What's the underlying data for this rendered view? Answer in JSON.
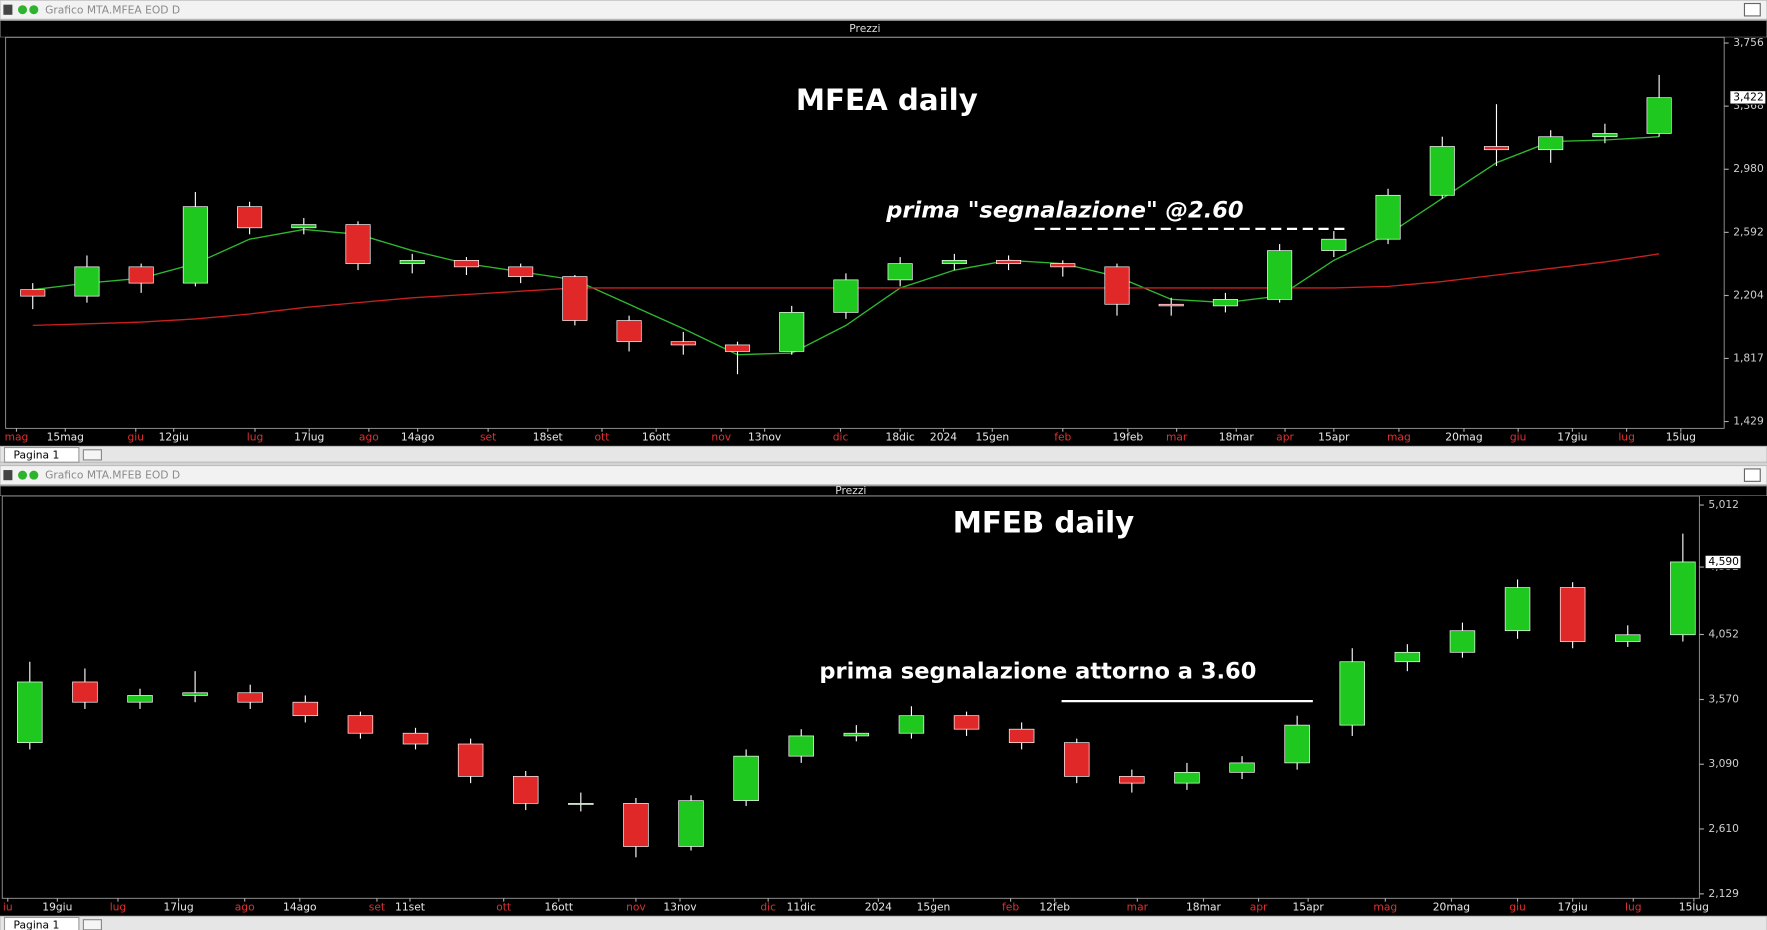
{
  "windows": [
    {
      "title": "Grafico MTA.MFEA EOD D",
      "panel": "Prezzi",
      "tab": "Pagina 1",
      "chart_data": {
        "type": "candlestick",
        "annotations": [
          "MFEA daily",
          "prima \"segnalazione\" @2.60"
        ],
        "up_color": "#1ec81e",
        "down_color": "#e02828",
        "wick_color": "#ffffff",
        "open": [
          2.24,
          2.2,
          2.38,
          2.28,
          2.75,
          2.62,
          2.64,
          2.4,
          2.42,
          2.38,
          2.32,
          2.05,
          1.92,
          1.9,
          1.86,
          2.1,
          2.3,
          2.4,
          2.42,
          2.4,
          2.38,
          2.15,
          2.14,
          2.18,
          2.48,
          2.55,
          2.82,
          3.12,
          3.1,
          3.18,
          3.2
        ],
        "high": [
          2.28,
          2.45,
          2.4,
          2.84,
          2.78,
          2.68,
          2.66,
          2.46,
          2.44,
          2.4,
          2.33,
          2.08,
          1.98,
          1.92,
          2.14,
          2.34,
          2.44,
          2.46,
          2.45,
          2.42,
          2.4,
          2.19,
          2.22,
          2.52,
          2.6,
          2.86,
          3.18,
          3.38,
          3.22,
          3.26,
          3.56
        ],
        "low": [
          2.12,
          2.16,
          2.22,
          2.26,
          2.58,
          2.58,
          2.36,
          2.34,
          2.33,
          2.28,
          2.02,
          1.86,
          1.84,
          1.72,
          1.84,
          2.06,
          2.26,
          2.36,
          2.36,
          2.32,
          2.08,
          2.08,
          2.1,
          2.16,
          2.44,
          2.52,
          2.8,
          3.0,
          3.02,
          3.14,
          3.18
        ],
        "close": [
          2.2,
          2.38,
          2.28,
          2.75,
          2.62,
          2.64,
          2.4,
          2.42,
          2.38,
          2.32,
          2.05,
          1.92,
          1.9,
          1.86,
          2.1,
          2.3,
          2.4,
          2.42,
          2.4,
          2.38,
          2.15,
          2.14,
          2.18,
          2.48,
          2.55,
          2.82,
          3.12,
          3.1,
          3.18,
          3.2,
          3.42
        ],
        "lines": [
          {
            "color": "#2fb82f",
            "values": [
              2.24,
              2.28,
              2.31,
              2.4,
              2.55,
              2.61,
              2.58,
              2.48,
              2.4,
              2.35,
              2.3,
              2.15,
              2.0,
              1.84,
              1.85,
              2.02,
              2.25,
              2.36,
              2.42,
              2.4,
              2.32,
              2.18,
              2.16,
              2.2,
              2.42,
              2.58,
              2.8,
              3.02,
              3.15,
              3.16,
              3.18
            ]
          },
          {
            "color": "#c82020",
            "values": [
              2.02,
              2.03,
              2.04,
              2.06,
              2.09,
              2.13,
              2.16,
              2.19,
              2.21,
              2.23,
              2.25,
              2.25,
              2.25,
              2.25,
              2.25,
              2.25,
              2.25,
              2.25,
              2.25,
              2.25,
              2.25,
              2.25,
              2.25,
              2.25,
              2.25,
              2.26,
              2.29,
              2.33,
              2.37,
              2.41,
              2.46
            ]
          }
        ],
        "last": {
          "value": 3.422,
          "label": "3,422"
        },
        "xlim": [
          0,
          31.7
        ],
        "xticks": [
          {
            "value": 0.2,
            "label": "mag"
          },
          {
            "value": 1.1,
            "label": "15mag"
          },
          {
            "value": 2.4,
            "label": "giu"
          },
          {
            "value": 3.1,
            "label": "12giu"
          },
          {
            "value": 4.6,
            "label": "lug"
          },
          {
            "value": 5.6,
            "label": "17lug"
          },
          {
            "value": 6.7,
            "label": "ago"
          },
          {
            "value": 7.6,
            "label": "14ago"
          },
          {
            "value": 8.9,
            "label": "set"
          },
          {
            "value": 10.0,
            "label": "18set"
          },
          {
            "value": 11.0,
            "label": "ott"
          },
          {
            "value": 12.0,
            "label": "16ott"
          },
          {
            "value": 13.2,
            "label": "nov"
          },
          {
            "value": 14.0,
            "label": "13nov"
          },
          {
            "value": 15.4,
            "label": "dic"
          },
          {
            "value": 16.5,
            "label": "18dic"
          },
          {
            "value": 17.3,
            "label": "2024"
          },
          {
            "value": 18.2,
            "label": "15gen"
          },
          {
            "value": 19.5,
            "label": "feb"
          },
          {
            "value": 20.7,
            "label": "19feb"
          },
          {
            "value": 21.6,
            "label": "mar"
          },
          {
            "value": 22.7,
            "label": "18mar"
          },
          {
            "value": 23.6,
            "label": "apr"
          },
          {
            "value": 24.5,
            "label": "15apr"
          },
          {
            "value": 25.7,
            "label": "mag"
          },
          {
            "value": 26.9,
            "label": "20mag"
          },
          {
            "value": 27.9,
            "label": "giu"
          },
          {
            "value": 28.9,
            "label": "17giu"
          },
          {
            "value": 29.9,
            "label": "lug"
          },
          {
            "value": 30.9,
            "label": "15lug"
          }
        ],
        "ylim": [
          1.387,
          3.791
        ],
        "yticks": [
          {
            "value": 3.756,
            "label": "3,756"
          },
          {
            "value": 3.368,
            "label": "3,368"
          },
          {
            "value": 2.98,
            "label": "2,980"
          },
          {
            "value": 2.592,
            "label": "2,592"
          },
          {
            "value": 2.204,
            "label": "2,204"
          },
          {
            "value": 1.817,
            "label": "1,817"
          },
          {
            "value": 1.429,
            "label": "1,429"
          }
        ]
      }
    },
    {
      "title": "Grafico MTA.MFEB EOD D",
      "panel": "Prezzi",
      "tab": "Pagina 1",
      "chart_data": {
        "type": "candlestick",
        "annotations": [
          "MFEB daily",
          "prima segnalazione attorno a 3.60"
        ],
        "up_color": "#1ec81e",
        "down_color": "#e02828",
        "wick_color": "#ffffff",
        "open": [
          3.25,
          3.7,
          3.55,
          3.6,
          3.62,
          3.55,
          3.45,
          3.32,
          3.24,
          3.0,
          2.8,
          2.8,
          2.48,
          2.82,
          3.15,
          3.3,
          3.32,
          3.45,
          3.35,
          3.25,
          3.0,
          2.95,
          3.03,
          3.1,
          3.38,
          3.85,
          3.92,
          4.08,
          4.4,
          4.0,
          4.05
        ],
        "high": [
          3.85,
          3.8,
          3.65,
          3.78,
          3.68,
          3.6,
          3.48,
          3.36,
          3.28,
          3.04,
          2.88,
          2.84,
          2.86,
          3.2,
          3.35,
          3.38,
          3.52,
          3.48,
          3.4,
          3.28,
          3.05,
          3.1,
          3.15,
          3.45,
          3.95,
          3.98,
          4.14,
          4.46,
          4.44,
          4.12,
          4.8
        ],
        "low": [
          3.2,
          3.5,
          3.5,
          3.55,
          3.5,
          3.4,
          3.28,
          3.2,
          2.95,
          2.75,
          2.74,
          2.4,
          2.45,
          2.78,
          3.1,
          3.26,
          3.28,
          3.3,
          3.2,
          2.95,
          2.88,
          2.9,
          2.98,
          3.05,
          3.3,
          3.78,
          3.88,
          4.02,
          3.95,
          3.96,
          4.0
        ],
        "close": [
          3.7,
          3.55,
          3.6,
          3.62,
          3.55,
          3.45,
          3.32,
          3.24,
          3.0,
          2.8,
          2.8,
          2.48,
          2.82,
          3.15,
          3.3,
          3.32,
          3.45,
          3.35,
          3.25,
          3.0,
          2.95,
          3.03,
          3.1,
          3.38,
          3.85,
          3.92,
          4.08,
          4.4,
          4.0,
          4.05,
          4.59
        ],
        "lines": [],
        "last": {
          "value": 4.59,
          "label": "4,590"
        },
        "xlim": [
          0,
          30.8
        ],
        "xticks": [
          {
            "value": 0.1,
            "label": "iu"
          },
          {
            "value": 1.0,
            "label": "19giu"
          },
          {
            "value": 2.1,
            "label": "lug"
          },
          {
            "value": 3.2,
            "label": "17lug"
          },
          {
            "value": 4.4,
            "label": "ago"
          },
          {
            "value": 5.4,
            "label": "14ago"
          },
          {
            "value": 6.8,
            "label": "set"
          },
          {
            "value": 7.4,
            "label": "11set"
          },
          {
            "value": 9.1,
            "label": "ott"
          },
          {
            "value": 10.1,
            "label": "16ott"
          },
          {
            "value": 11.5,
            "label": "nov"
          },
          {
            "value": 12.3,
            "label": "13nov"
          },
          {
            "value": 13.9,
            "label": "dic"
          },
          {
            "value": 14.5,
            "label": "11dic"
          },
          {
            "value": 15.9,
            "label": "2024"
          },
          {
            "value": 16.9,
            "label": "15gen"
          },
          {
            "value": 18.3,
            "label": "feb"
          },
          {
            "value": 19.1,
            "label": "12feb"
          },
          {
            "value": 20.6,
            "label": "mar"
          },
          {
            "value": 21.8,
            "label": "18mar"
          },
          {
            "value": 22.8,
            "label": "apr"
          },
          {
            "value": 23.7,
            "label": "15apr"
          },
          {
            "value": 25.1,
            "label": "mag"
          },
          {
            "value": 26.3,
            "label": "20mag"
          },
          {
            "value": 27.5,
            "label": "giu"
          },
          {
            "value": 28.5,
            "label": "17giu"
          },
          {
            "value": 29.6,
            "label": "lug"
          },
          {
            "value": 30.7,
            "label": "15lug"
          }
        ],
        "ylim": [
          2.096,
          5.079
        ],
        "yticks": [
          {
            "value": 5.012,
            "label": "5,012"
          },
          {
            "value": 4.552,
            "label": "4,552"
          },
          {
            "value": 4.052,
            "label": "4,052"
          },
          {
            "value": 3.57,
            "label": "3,570"
          },
          {
            "value": 3.09,
            "label": "3,090"
          },
          {
            "value": 2.61,
            "label": "2,610"
          },
          {
            "value": 2.129,
            "label": "2,129"
          }
        ]
      }
    }
  ]
}
